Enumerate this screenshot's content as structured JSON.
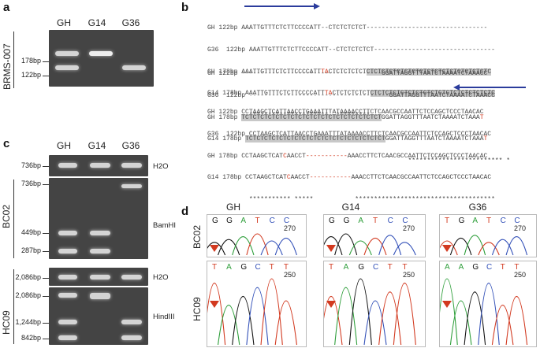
{
  "panels": {
    "a": "a",
    "b": "b",
    "c": "c",
    "d": "d"
  },
  "lanes": {
    "gh": "GH",
    "g14": "G14",
    "g36": "G36"
  },
  "panel_a": {
    "sample": "BRMS-007",
    "bp_upper": "178bp",
    "bp_lower": "122bp"
  },
  "panel_b": {
    "blocks": [
      {
        "rows": [
          {
            "name": "GH",
            "len": "122bp",
            "seq": "AAATTGTTTCTCTTCCCCATT--CTCTCTCTCT--------------------------------"
          },
          {
            "name": "G36",
            "len": "122bp",
            "seq": "AAATTGTTTCTCTTCCCCATT--CTCTCTCTCT--------------------------------"
          },
          {
            "name": "GH",
            "len": "178bp",
            "seq_a": "AAATTGTTTCTCTTCCCCATT",
            "seq_r": "TA",
            "seq_b": "CTCTCTCTCT",
            "seq_h": "CTCTCTCTCTCTCTCTCTCTCTCTCTCTCTCTC"
          },
          {
            "name": "G14",
            "len": "178bp",
            "seq_a": "AAATTGTTTCTCTTCCCCATT",
            "seq_r": "TA",
            "seq_b": "CTCTCTCTCT",
            "seq_h": "CTCTCTCTCTCTCTCTCTCTCTCTCTCTCTCTC"
          }
        ],
        "stars": "*********************  *********"
      },
      {
        "rows": [
          {
            "name": "GH",
            "len": "122bp",
            "seq": "-------------------------------------GGATTAGGTTTAATCTAAAATCTAAACC"
          },
          {
            "name": "G36",
            "len": "122bp",
            "seq": "-------------------------------------GGATTAGGTTTAATCTAAAATCTAAACC"
          },
          {
            "name": "GH",
            "len": "178bp",
            "seq_h": "TCTCTCTCTCTCTCTCTCTCTCTCTCTCTCTCTCTCT",
            "seq_b": "GGATTAGGTTTAATCTAAAATCTAAA",
            "seq_r": "T"
          },
          {
            "name": "G14",
            "len": "178bp",
            "seq_h": "TCTCTCTCTCTCTCTCTCTCTCTCTCTCTCTCTCTCT",
            "seq_b": "GGATTAGGTTTAATCTAAAATCTAAA",
            "seq_r": "T"
          }
        ],
        "stars": "                                          ************************* *"
      },
      {
        "rows": [
          {
            "name": "GH",
            "len": "122bp",
            "seq": "CCTAAGCTCATTAACCTGAAATTTATAAAACCTTCTCAACGCCAATTCTCCAGCTCCCTAACAC"
          },
          {
            "name": "G36",
            "len": "122bp",
            "seq": "CCTAAGCTCATTAACCTGAAATTTATAAAACCTTCTCAACGCCAATTCTCCAGCTCCCTAACAC"
          },
          {
            "name": "GH",
            "len": "178bp",
            "seq_a": "CCTAAGCTCAT",
            "seq_r": "C",
            "seq_b": "AACCT",
            "seq_d": "-----------",
            "seq_c": "AAACCTTCTCAACGCCAATTCTCCAGCTCCCTAACAC"
          },
          {
            "name": "G14",
            "len": "178bp",
            "seq_a": "CCTAAGCTCAT",
            "seq_r": "C",
            "seq_b": "AACCT",
            "seq_d": "-----------",
            "seq_c": "AAACCTTCTCAACGCCAATTCTCCAGCTCCCTAACAC"
          }
        ],
        "stars": "*********** *****           *************************************"
      }
    ]
  },
  "panel_c": {
    "loci": [
      "BC02",
      "HC09"
    ],
    "bc02_bp": [
      "736bp",
      "736bp",
      "449bp",
      "287bp"
    ],
    "hc09_bp": [
      "2,086bp",
      "2,086bp",
      "1,244bp",
      "842bp"
    ],
    "enzymes": [
      "H2O",
      "BamHI",
      "H2O",
      "HindIII"
    ]
  },
  "panel_d": {
    "columns": [
      "GH",
      "G14",
      "G36"
    ],
    "rows": [
      "BC02",
      "HC09"
    ],
    "bc02": [
      {
        "bases": [
          "G",
          "G",
          "A",
          "T",
          "C",
          "C"
        ],
        "pos": "270"
      },
      {
        "bases": [
          "G",
          "G",
          "A",
          "T",
          "C",
          "C"
        ],
        "pos": "270"
      },
      {
        "bases": [
          "T",
          "G",
          "A",
          "T",
          "C",
          "C"
        ],
        "pos": "270"
      }
    ],
    "hc09": [
      {
        "bases": [
          "T",
          "A",
          "G",
          "C",
          "T",
          "T"
        ],
        "pos": "250"
      },
      {
        "bases": [
          "T",
          "A",
          "G",
          "C",
          "T",
          "T"
        ],
        "pos": "250"
      },
      {
        "bases": [
          "A",
          "A",
          "G",
          "C",
          "T",
          "T"
        ],
        "pos": "250"
      }
    ],
    "base_colors": {
      "A": "#2e9e3a",
      "C": "#3250b8",
      "G": "#111111",
      "T": "#d2391f"
    }
  }
}
